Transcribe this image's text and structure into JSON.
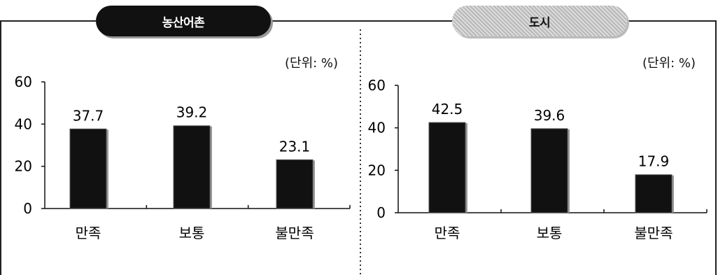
{
  "panels": {
    "left": {
      "label": "농산어촌",
      "unit": "(단위: %)"
    },
    "right": {
      "label": "도시",
      "unit": "(단위: %)"
    }
  },
  "chart_data": [
    {
      "type": "bar",
      "title": "농산어촌",
      "unit": "(단위: %)",
      "categories": [
        "만족",
        "보통",
        "불만족"
      ],
      "values": [
        37.7,
        39.2,
        23.1
      ],
      "ylim": [
        0,
        60
      ],
      "yticks": [
        0,
        20,
        40,
        60
      ],
      "bar_color": "#111111"
    },
    {
      "type": "bar",
      "title": "도시",
      "unit": "(단위: %)",
      "categories": [
        "만족",
        "보통",
        "불만족"
      ],
      "values": [
        42.5,
        39.6,
        17.9
      ],
      "ylim": [
        0,
        60
      ],
      "yticks": [
        0,
        20,
        40,
        60
      ],
      "bar_color": "#111111"
    }
  ]
}
